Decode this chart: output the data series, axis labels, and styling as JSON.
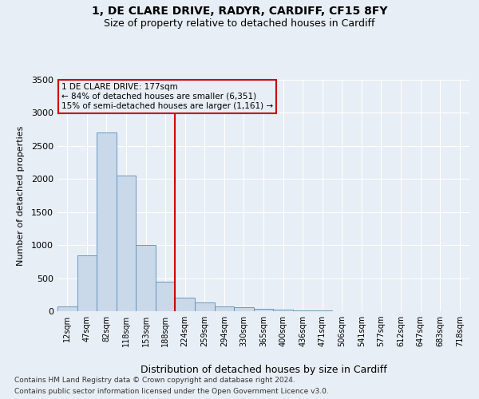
{
  "title1": "1, DE CLARE DRIVE, RADYR, CARDIFF, CF15 8FY",
  "title2": "Size of property relative to detached houses in Cardiff",
  "xlabel": "Distribution of detached houses by size in Cardiff",
  "ylabel": "Number of detached properties",
  "footnote1": "Contains HM Land Registry data © Crown copyright and database right 2024.",
  "footnote2": "Contains public sector information licensed under the Open Government Licence v3.0.",
  "annotation_line1": "1 DE CLARE DRIVE: 177sqm",
  "annotation_line2": "← 84% of detached houses are smaller (6,351)",
  "annotation_line3": "15% of semi-detached houses are larger (1,161) →",
  "bar_labels": [
    "12sqm",
    "47sqm",
    "82sqm",
    "118sqm",
    "153sqm",
    "188sqm",
    "224sqm",
    "259sqm",
    "294sqm",
    "330sqm",
    "365sqm",
    "400sqm",
    "436sqm",
    "471sqm",
    "506sqm",
    "541sqm",
    "577sqm",
    "612sqm",
    "647sqm",
    "683sqm",
    "718sqm"
  ],
  "bar_values": [
    75,
    850,
    2700,
    2050,
    1000,
    450,
    200,
    130,
    75,
    60,
    40,
    25,
    15,
    8,
    4,
    2,
    1,
    1,
    0,
    0,
    0
  ],
  "bar_color": "#c9d9ea",
  "bar_edge_color": "#5b8db8",
  "vline_x": 5.5,
  "vline_color": "#cc0000",
  "ylim": [
    0,
    3500
  ],
  "yticks": [
    0,
    500,
    1000,
    1500,
    2000,
    2500,
    3000,
    3500
  ],
  "bg_color": "#e8eef5",
  "grid_color": "#ffffff",
  "title1_fontsize": 10,
  "title2_fontsize": 9
}
